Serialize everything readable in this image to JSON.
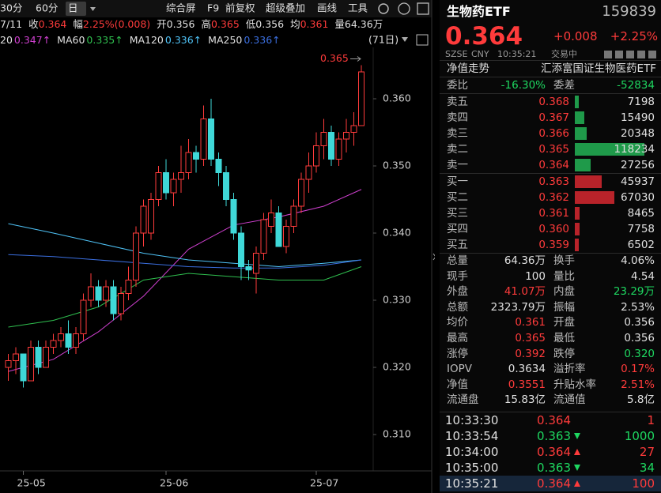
{
  "toolbar": {
    "items": [
      "30分",
      "60分",
      "日",
      "综合屏",
      "F9",
      "前复权",
      "超级叠加",
      "画线",
      "工具"
    ],
    "active": 2
  },
  "info": {
    "date": "7/11",
    "items": [
      {
        "label": "收",
        "value": "0.364",
        "color": "#ff3b3b"
      },
      {
        "label": "幅",
        "value": "2.25%(0.008)",
        "color": "#ff3b3b"
      },
      {
        "label": "开",
        "value": "0.356",
        "color": "#e0e0e0"
      },
      {
        "label": "高",
        "value": "0.365",
        "color": "#ff3b3b"
      },
      {
        "label": "低",
        "value": "0.356",
        "color": "#e0e0e0"
      },
      {
        "label": "均",
        "value": "0.361",
        "color": "#ff3b3b"
      },
      {
        "label": "量",
        "value": "64.36万",
        "color": "#e0e0e0"
      }
    ]
  },
  "period_label": "(71日)",
  "chart_data": {
    "type": "candlestick",
    "categories": [
      null,
      null,
      "25-05",
      null,
      null,
      null,
      null,
      null,
      null,
      null,
      null,
      null,
      null,
      null,
      null,
      null,
      null,
      null,
      null,
      null,
      null,
      "25-06",
      null,
      null,
      null,
      null,
      null,
      null,
      null,
      null,
      null,
      null,
      null,
      null,
      null,
      null,
      null,
      null,
      null,
      null,
      null,
      "25-07",
      null,
      null,
      null,
      null,
      null,
      null
    ],
    "open": [
      0.32,
      0.321,
      0.322,
      0.318,
      0.323,
      0.32,
      0.323,
      0.324,
      0.325,
      0.323,
      0.325,
      0.33,
      0.332,
      0.33,
      0.332,
      0.328,
      0.331,
      0.333,
      0.34,
      0.34,
      0.345,
      0.349,
      0.346,
      0.348,
      0.349,
      0.352,
      0.351,
      0.357,
      0.351,
      0.349,
      0.345,
      0.34,
      0.335,
      0.334,
      0.337,
      0.341,
      0.343,
      0.338,
      0.341,
      0.344,
      0.348,
      0.35,
      0.353,
      0.355,
      0.351,
      0.354,
      0.355,
      0.356
    ],
    "high": [
      0.322,
      0.323,
      0.322,
      0.324,
      0.324,
      0.324,
      0.325,
      0.326,
      0.327,
      0.326,
      0.331,
      0.334,
      0.333,
      0.333,
      0.333,
      0.332,
      0.335,
      0.341,
      0.345,
      0.346,
      0.35,
      0.351,
      0.349,
      0.353,
      0.354,
      0.353,
      0.359,
      0.36,
      0.352,
      0.35,
      0.346,
      0.341,
      0.336,
      0.338,
      0.343,
      0.345,
      0.344,
      0.342,
      0.345,
      0.349,
      0.352,
      0.355,
      0.357,
      0.356,
      0.355,
      0.357,
      0.358,
      0.365
    ],
    "low": [
      0.318,
      0.319,
      0.317,
      0.318,
      0.319,
      0.32,
      0.322,
      0.323,
      0.322,
      0.322,
      0.324,
      0.329,
      0.329,
      0.329,
      0.327,
      0.327,
      0.33,
      0.332,
      0.338,
      0.339,
      0.344,
      0.345,
      0.344,
      0.346,
      0.348,
      0.349,
      0.35,
      0.35,
      0.347,
      0.344,
      0.339,
      0.333,
      0.333,
      0.331,
      0.336,
      0.34,
      0.338,
      0.337,
      0.34,
      0.343,
      0.346,
      0.349,
      0.351,
      0.35,
      0.35,
      0.352,
      0.353,
      0.356
    ],
    "close": [
      0.321,
      0.322,
      0.318,
      0.323,
      0.32,
      0.323,
      0.324,
      0.325,
      0.323,
      0.325,
      0.33,
      0.332,
      0.33,
      0.332,
      0.328,
      0.331,
      0.333,
      0.34,
      0.344,
      0.345,
      0.349,
      0.346,
      0.348,
      0.349,
      0.352,
      0.351,
      0.357,
      0.351,
      0.349,
      0.345,
      0.34,
      0.335,
      0.3345,
      0.337,
      0.342,
      0.343,
      0.338,
      0.341,
      0.344,
      0.348,
      0.35,
      0.353,
      0.355,
      0.351,
      0.354,
      0.355,
      0.356,
      0.364
    ],
    "up_color": "#ff3b3b",
    "down_color": "#3fd8d8",
    "ylim": [
      0.305,
      0.37
    ],
    "yticks": [
      {
        "value": 0.31,
        "label": "0.310"
      },
      {
        "value": 0.32,
        "label": "0.320"
      },
      {
        "value": 0.33,
        "label": "0.330"
      },
      {
        "value": 0.34,
        "label": "0.340"
      },
      {
        "value": 0.35,
        "label": "0.350"
      },
      {
        "value": 0.36,
        "label": "0.360"
      }
    ],
    "series": [
      {
        "name": "20",
        "legend_value": "0.347↑",
        "color": "#d040d0",
        "x": [
          0,
          6,
          12,
          18,
          24,
          30,
          36,
          42,
          47
        ],
        "values": [
          0.3194,
          0.3212,
          0.3253,
          0.3306,
          0.3376,
          0.3412,
          0.3424,
          0.344,
          0.3465
        ]
      },
      {
        "name": "MA60",
        "legend_value": "0.335↑",
        "color": "#2fbf4f",
        "x": [
          0,
          6,
          12,
          18,
          24,
          30,
          36,
          42,
          47
        ],
        "values": [
          0.326,
          0.327,
          0.329,
          0.333,
          0.334,
          0.3335,
          0.333,
          0.333,
          0.335
        ]
      },
      {
        "name": "MA120",
        "legend_value": "0.336↑",
        "color": "#4fc3f7",
        "x": [
          0,
          6,
          12,
          18,
          24,
          30,
          36,
          42,
          47
        ],
        "values": [
          0.3414,
          0.34,
          0.3385,
          0.337,
          0.336,
          0.3355,
          0.335,
          0.3355,
          0.336
        ]
      },
      {
        "name": "MA250",
        "legend_value": "0.336↑",
        "color": "#3b6fe0",
        "x": [
          0,
          6,
          12,
          18,
          24,
          30,
          36,
          42,
          47
        ],
        "values": [
          0.3368,
          0.3365,
          0.336,
          0.3355,
          0.335,
          0.3348,
          0.3348,
          0.3352,
          0.336
        ]
      }
    ],
    "annotation": "0.365"
  },
  "quote": {
    "name": "生物药ETF",
    "code": "159839",
    "price": "0.364",
    "change": "+0.008",
    "change_pct": "+2.25%",
    "status": [
      "SZSE",
      "CNY",
      "10:35:21",
      "交易中"
    ],
    "nav_link": "净值走势",
    "fund_name": "汇添富国证生物医药ETF",
    "ratio": [
      {
        "label": "委比",
        "value": "-16.30%",
        "color": "#1ed760"
      },
      {
        "label": "委差",
        "value": "-52834",
        "color": "#1ed760"
      }
    ],
    "ask_color": "#1f9a4a",
    "bid_color": "#b8232a",
    "asks": [
      {
        "label": "卖五",
        "price": "0.368",
        "volume": 7198
      },
      {
        "label": "卖四",
        "price": "0.367",
        "volume": 15490
      },
      {
        "label": "卖三",
        "price": "0.366",
        "volume": 20348
      },
      {
        "label": "卖二",
        "price": "0.365",
        "volume": 118234
      },
      {
        "label": "卖一",
        "price": "0.364",
        "volume": 27256
      }
    ],
    "bids": [
      {
        "label": "买一",
        "price": "0.363",
        "volume": 45937
      },
      {
        "label": "买二",
        "price": "0.362",
        "volume": 67030
      },
      {
        "label": "买三",
        "price": "0.361",
        "volume": 8465
      },
      {
        "label": "买四",
        "price": "0.360",
        "volume": 7758
      },
      {
        "label": "买五",
        "price": "0.359",
        "volume": 6502
      }
    ],
    "stats": [
      [
        {
          "label": "总量",
          "value": "64.36万"
        },
        {
          "label": "换手",
          "value": "4.06%"
        }
      ],
      [
        {
          "label": "现手",
          "value": "100"
        },
        {
          "label": "量比",
          "value": "4.54"
        }
      ],
      [
        {
          "label": "外盘",
          "value": "41.07万",
          "color": "#ff3b3b"
        },
        {
          "label": "内盘",
          "value": "23.29万",
          "color": "#1ed760"
        }
      ],
      [
        {
          "label": "总额",
          "value": "2323.79万"
        },
        {
          "label": "振幅",
          "value": "2.53%"
        }
      ],
      [
        {
          "label": "均价",
          "value": "0.361",
          "color": "#ff3b3b"
        },
        {
          "label": "开盘",
          "value": "0.356"
        }
      ],
      [
        {
          "label": "最高",
          "value": "0.365",
          "color": "#ff3b3b"
        },
        {
          "label": "最低",
          "value": "0.356"
        }
      ],
      [
        {
          "label": "涨停",
          "value": "0.392",
          "color": "#ff3b3b"
        },
        {
          "label": "跌停",
          "value": "0.320",
          "color": "#1ed760"
        }
      ],
      [
        {
          "label": "IOPV",
          "value": "0.3634"
        },
        {
          "label": "溢折率",
          "value": "0.17%",
          "color": "#ff3b3b"
        }
      ],
      [
        {
          "label": "净值",
          "value": "0.3551",
          "color": "#ff3b3b"
        },
        {
          "label": "升贴水率",
          "value": "2.51%",
          "color": "#ff3b3b"
        }
      ],
      [
        {
          "label": "流通盘",
          "value": "15.83亿"
        },
        {
          "label": "流通值",
          "value": "5.8亿"
        }
      ]
    ],
    "trades": [
      {
        "time": "10:33:30",
        "price": "0.364",
        "volume": 1,
        "color": "#ff3b3b"
      },
      {
        "time": "10:33:54",
        "price": "0.363",
        "volume": 1000,
        "color": "#1ed760",
        "dir": "down"
      },
      {
        "time": "10:34:00",
        "price": "0.364",
        "volume": 27,
        "color": "#ff3b3b",
        "dir": "up"
      },
      {
        "time": "10:35:00",
        "price": "0.363",
        "volume": 34,
        "color": "#1ed760",
        "dir": "down"
      },
      {
        "time": "10:35:21",
        "price": "0.364",
        "volume": 100,
        "color": "#ff3b3b",
        "dir": "up"
      }
    ]
  }
}
